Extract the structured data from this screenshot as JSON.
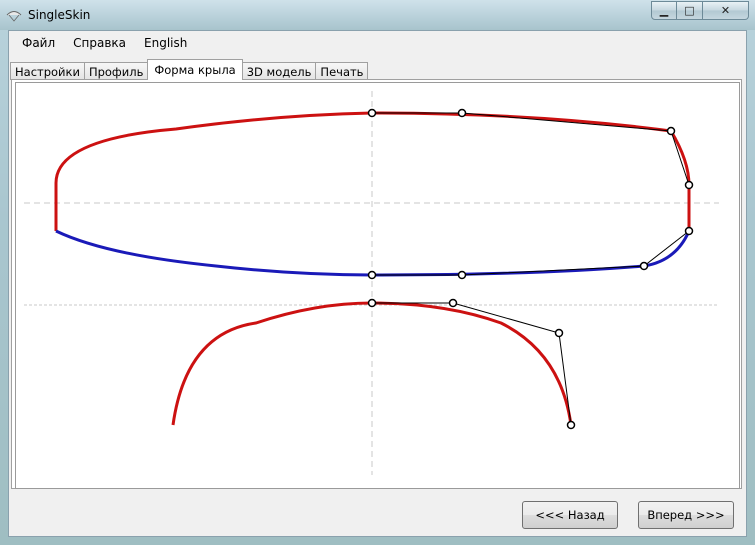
{
  "window": {
    "title": "SingleSkin",
    "min_label": "▁",
    "max_label": "□",
    "close_label": "✕"
  },
  "menu": [
    "Файл",
    "Справка",
    "English"
  ],
  "tabs": [
    "Настройки",
    "Профиль",
    "Форма крыла",
    "3D модель",
    "Печать"
  ],
  "active_tab": "Форма крыла",
  "buttons": {
    "back": "<<< Назад",
    "next": "Вперед >>>"
  },
  "colors": {
    "upper_curve": "#cc1111",
    "lower_curve": "#1a1ab8",
    "guide": "#c8c8c8",
    "control": "#000000"
  }
}
